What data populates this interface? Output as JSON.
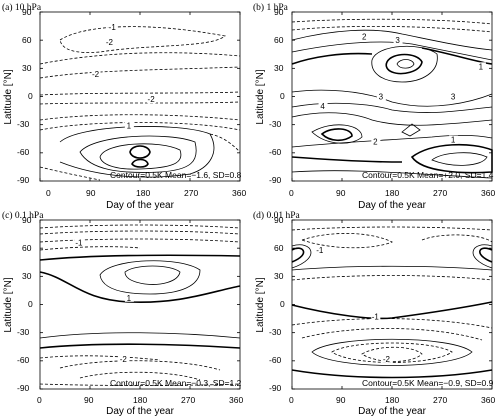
{
  "chart_data": [
    {
      "type": "contour",
      "title": "(a) 10 hPa",
      "xlabel": "Day of the year",
      "ylabel": "Latitude [°N]",
      "xlim": [
        0,
        360
      ],
      "ylim": [
        -90,
        90
      ],
      "xticks": [
        "0",
        "90",
        "180",
        "270",
        "360"
      ],
      "yticks": [
        "90",
        "60",
        "30",
        "0",
        "-30",
        "-60",
        "-90"
      ],
      "annotation": "Contour=0.5K Mean=−1.6, SD=0.8",
      "contour_interval": 0.5,
      "mean": -1.6,
      "sd": 0.8,
      "labels": [
        {
          "text": "-1",
          "x": 130,
          "y": 72
        },
        {
          "text": "-2",
          "x": 125,
          "y": 56
        },
        {
          "text": "-2",
          "x": 100,
          "y": 22
        },
        {
          "text": "-2",
          "x": 200,
          "y": -5
        },
        {
          "text": "1",
          "x": 160,
          "y": -33
        }
      ]
    },
    {
      "type": "contour",
      "title": "(b) 1 hPa",
      "xlabel": "Day of the year",
      "ylabel": "Latitude [°N]",
      "xlim": [
        0,
        360
      ],
      "ylim": [
        -90,
        90
      ],
      "xticks": [
        "0",
        "90",
        "180",
        "270",
        "360"
      ],
      "yticks": [
        "90",
        "60",
        "30",
        "0",
        "-30",
        "-60",
        "-90"
      ],
      "annotation": "Contour=0.5K Mean=+2.0, SD=1.4",
      "contour_interval": 0.5,
      "mean": 2.0,
      "sd": 1.4,
      "labels": [
        {
          "text": "2",
          "x": 130,
          "y": 62
        },
        {
          "text": "3",
          "x": 190,
          "y": 58
        },
        {
          "text": "1",
          "x": 340,
          "y": 30
        },
        {
          "text": "3",
          "x": 160,
          "y": -2
        },
        {
          "text": "3",
          "x": 290,
          "y": -2
        },
        {
          "text": "4",
          "x": 55,
          "y": -12
        },
        {
          "text": "2",
          "x": 150,
          "y": -50
        },
        {
          "text": "1",
          "x": 290,
          "y": -48
        }
      ]
    },
    {
      "type": "contour",
      "title": "(c) 0.1 hPa",
      "xlabel": "Day of the year",
      "ylabel": "Latitude [°N]",
      "xlim": [
        0,
        360
      ],
      "ylim": [
        -90,
        90
      ],
      "xticks": [
        "0",
        "90",
        "180",
        "270",
        "360"
      ],
      "yticks": [
        "90",
        "60",
        "30",
        "0",
        "-30",
        "-60",
        "-90"
      ],
      "annotation": "Contour=0.5K Mean=−0.3, SD=1.2",
      "contour_interval": 0.5,
      "mean": -0.3,
      "sd": 1.2,
      "labels": [
        {
          "text": "-1",
          "x": 70,
          "y": 64
        },
        {
          "text": "1",
          "x": 160,
          "y": 5
        },
        {
          "text": "-2",
          "x": 150,
          "y": -60
        }
      ]
    },
    {
      "type": "contour",
      "title": "(d) 0.01 hPa",
      "xlabel": "Day of the year",
      "ylabel": "Latitude [°N]",
      "xlim": [
        0,
        360
      ],
      "ylim": [
        -90,
        90
      ],
      "xticks": [
        "0",
        "90",
        "180",
        "270",
        "360"
      ],
      "yticks": [
        "90",
        "60",
        "30",
        "0",
        "-30",
        "-60",
        "-90"
      ],
      "annotation": "Contour=0.5K Mean=−0.9, SD=0.9",
      "contour_interval": 0.5,
      "mean": -0.9,
      "sd": 0.9,
      "labels": [
        {
          "text": "-1",
          "x": 50,
          "y": 56
        },
        {
          "text": "-1",
          "x": 150,
          "y": -15
        },
        {
          "text": "-2",
          "x": 170,
          "y": -60
        }
      ]
    }
  ]
}
